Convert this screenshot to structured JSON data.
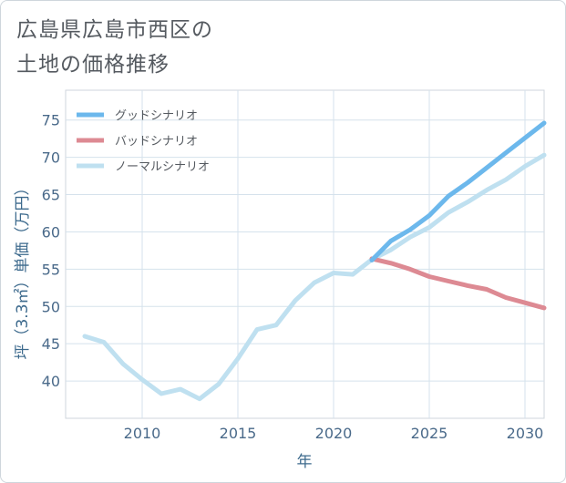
{
  "chart_data": {
    "type": "line",
    "title": "広島県広島市西区の土地の価格推移",
    "title_lines": [
      "広島県広島市西区の",
      "土地の価格推移"
    ],
    "xlabel": "年",
    "ylabel": "坪（3.3㎡）単価（万円）",
    "xlim": [
      2006,
      2031
    ],
    "ylim": [
      35,
      79
    ],
    "xticks": [
      2010,
      2015,
      2020,
      2025,
      2030
    ],
    "yticks": [
      40,
      45,
      50,
      55,
      60,
      65,
      70,
      75
    ],
    "grid": true,
    "legend_position": "top-left",
    "series": [
      {
        "name": "グッドシナリオ",
        "color": "#6cb8ec",
        "x": [
          2022,
          2023,
          2024,
          2025,
          2026,
          2027,
          2028,
          2029,
          2030,
          2031
        ],
        "values": [
          56.2,
          58.8,
          60.3,
          62.2,
          64.8,
          66.6,
          68.6,
          70.6,
          72.6,
          74.6
        ]
      },
      {
        "name": "バッドシナリオ",
        "color": "#dd8a93",
        "x": [
          2022,
          2023,
          2024,
          2025,
          2026,
          2027,
          2028,
          2029,
          2030,
          2031
        ],
        "values": [
          56.4,
          55.8,
          55.0,
          54.0,
          53.4,
          52.8,
          52.3,
          51.2,
          50.5,
          49.8
        ]
      },
      {
        "name": "ノーマルシナリオ",
        "color": "#bfe0f0",
        "x": [
          2007,
          2008,
          2009,
          2010,
          2011,
          2012,
          2013,
          2014,
          2015,
          2016,
          2017,
          2018,
          2019,
          2020,
          2021,
          2022,
          2023,
          2024,
          2025,
          2026,
          2027,
          2028,
          2029,
          2030,
          2031
        ],
        "values": [
          46.0,
          45.2,
          42.3,
          40.2,
          38.3,
          38.9,
          37.6,
          39.6,
          43.0,
          46.9,
          47.5,
          50.8,
          53.2,
          54.5,
          54.3,
          56.3,
          57.6,
          59.3,
          60.6,
          62.6,
          64.0,
          65.6,
          67.0,
          68.8,
          70.3
        ]
      }
    ]
  }
}
